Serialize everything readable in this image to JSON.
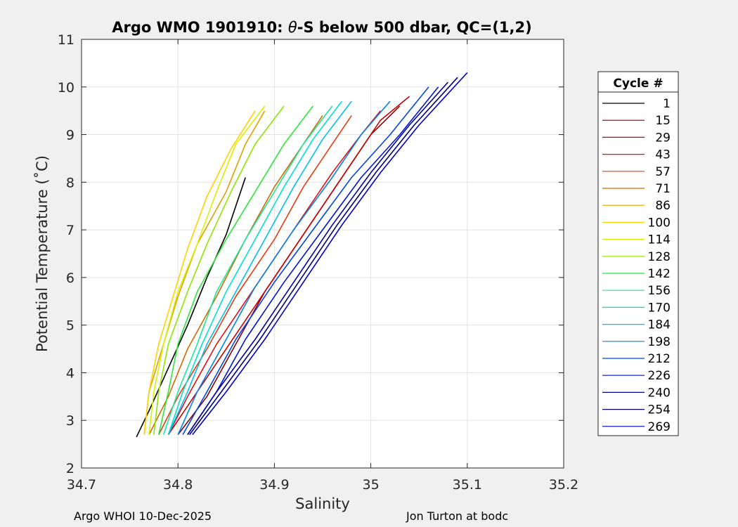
{
  "chart_data": {
    "type": "line",
    "title_prefix": "Argo WMO 1901910: ",
    "title_symbol": "θ",
    "title_suffix": "-S below 500 dbar,  QC=(1,2)",
    "xlabel": "Salinity",
    "ylabel": "Potential Temperature (˚C)",
    "xlim": [
      34.7,
      35.2
    ],
    "ylim": [
      2,
      11
    ],
    "xticks": [
      34.7,
      34.8,
      34.9,
      35,
      35.1,
      35.2
    ],
    "xtick_labels": [
      "34.7",
      "34.8",
      "34.9",
      "35",
      "35.1",
      "35.2"
    ],
    "yticks": [
      2,
      3,
      4,
      5,
      6,
      7,
      8,
      9,
      10,
      11
    ],
    "ytick_labels": [
      "2",
      "3",
      "4",
      "5",
      "6",
      "7",
      "8",
      "9",
      "10",
      "11"
    ],
    "grid": true,
    "legend": {
      "title": "Cycle #",
      "placement": "right",
      "entries": [
        {
          "label": "1",
          "color": "#000000"
        },
        {
          "label": "15",
          "color": "#8c0000"
        },
        {
          "label": "29",
          "color": "#c80000"
        },
        {
          "label": "43",
          "color": "#e01010"
        },
        {
          "label": "57",
          "color": "#e63a10"
        },
        {
          "label": "71",
          "color": "#d06a00"
        },
        {
          "label": "86",
          "color": "#e0a000"
        },
        {
          "label": "100",
          "color": "#ffd200"
        },
        {
          "label": "114",
          "color": "#d8f000"
        },
        {
          "label": "128",
          "color": "#8ce600"
        },
        {
          "label": "142",
          "color": "#2ee63a"
        },
        {
          "label": "156",
          "color": "#1ae6a0"
        },
        {
          "label": "170",
          "color": "#00e0d2"
        },
        {
          "label": "184",
          "color": "#00bef0"
        },
        {
          "label": "198",
          "color": "#0082f0"
        },
        {
          "label": "212",
          "color": "#0046e6"
        },
        {
          "label": "226",
          "color": "#0014d2"
        },
        {
          "label": "240",
          "color": "#0000a0"
        },
        {
          "label": "254",
          "color": "#00006e"
        },
        {
          "label": "269",
          "color": "#0000c8"
        }
      ]
    },
    "series": [
      {
        "color": "#000000",
        "x": [
          34.757,
          34.77,
          34.79,
          34.81,
          34.83,
          34.85,
          34.86,
          34.87
        ],
        "y": [
          2.65,
          3.2,
          4.1,
          5.0,
          6.0,
          6.9,
          7.5,
          8.1
        ]
      },
      {
        "color": "#8c0000",
        "x": [
          34.8,
          34.83,
          34.86,
          34.89,
          34.93,
          34.97,
          35.0,
          35.03
        ],
        "y": [
          2.7,
          3.5,
          4.6,
          5.7,
          6.9,
          8.1,
          9.0,
          9.6
        ]
      },
      {
        "color": "#c80000",
        "x": [
          34.79,
          34.82,
          34.86,
          34.9,
          34.94,
          34.98,
          35.01,
          35.04
        ],
        "y": [
          2.7,
          3.6,
          4.8,
          6.0,
          7.2,
          8.4,
          9.3,
          9.8
        ]
      },
      {
        "color": "#e01010",
        "x": [
          34.79,
          34.81,
          34.84,
          34.88,
          34.92,
          34.96,
          34.99,
          35.01
        ],
        "y": [
          2.7,
          3.5,
          4.6,
          5.8,
          7.0,
          8.2,
          9.0,
          9.5
        ]
      },
      {
        "color": "#e63a10",
        "x": [
          34.78,
          34.8,
          34.83,
          34.86,
          34.9,
          34.93,
          34.96,
          34.98
        ],
        "y": [
          2.7,
          3.5,
          4.5,
          5.6,
          6.8,
          7.9,
          8.8,
          9.4
        ]
      },
      {
        "color": "#d06a00",
        "x": [
          34.77,
          34.79,
          34.81,
          34.84,
          34.87,
          34.9,
          34.93,
          34.95
        ],
        "y": [
          2.7,
          3.5,
          4.5,
          5.6,
          6.8,
          7.9,
          8.8,
          9.4
        ]
      },
      {
        "color": "#e0a000",
        "x": [
          34.765,
          34.77,
          34.785,
          34.8,
          34.82,
          34.85,
          34.87,
          34.89
        ],
        "y": [
          2.7,
          3.6,
          4.6,
          5.6,
          6.7,
          7.8,
          8.8,
          9.5
        ]
      },
      {
        "color": "#ffd200",
        "x": [
          34.765,
          34.77,
          34.78,
          34.795,
          34.81,
          34.83,
          34.855,
          34.88
        ],
        "y": [
          2.7,
          3.6,
          4.6,
          5.6,
          6.6,
          7.7,
          8.7,
          9.5
        ]
      },
      {
        "color": "#d8f000",
        "x": [
          34.77,
          34.775,
          34.785,
          34.8,
          34.82,
          34.84,
          34.86,
          34.89
        ],
        "y": [
          2.7,
          3.6,
          4.6,
          5.7,
          6.7,
          7.8,
          8.8,
          9.6
        ]
      },
      {
        "color": "#8ce600",
        "x": [
          34.775,
          34.78,
          34.79,
          34.81,
          34.83,
          34.855,
          34.88,
          34.91
        ],
        "y": [
          2.7,
          3.6,
          4.6,
          5.7,
          6.7,
          7.8,
          8.8,
          9.6
        ]
      },
      {
        "color": "#2ee63a",
        "x": [
          34.78,
          34.79,
          34.8,
          34.82,
          34.85,
          34.88,
          34.91,
          34.94
        ],
        "y": [
          2.7,
          3.6,
          4.6,
          5.7,
          6.8,
          7.8,
          8.8,
          9.6
        ]
      },
      {
        "color": "#1ae6a0",
        "x": [
          34.785,
          34.8,
          34.82,
          34.84,
          34.87,
          34.9,
          34.93,
          34.96
        ],
        "y": [
          2.7,
          3.6,
          4.6,
          5.7,
          6.8,
          7.8,
          8.8,
          9.6
        ]
      },
      {
        "color": "#00e0d2",
        "x": [
          34.79,
          34.805,
          34.825,
          34.85,
          34.88,
          34.91,
          34.94,
          34.97
        ],
        "y": [
          2.7,
          3.6,
          4.6,
          5.7,
          6.8,
          7.9,
          8.9,
          9.7
        ]
      },
      {
        "color": "#00bef0",
        "x": [
          34.79,
          34.81,
          34.83,
          34.86,
          34.89,
          34.92,
          34.95,
          34.98
        ],
        "y": [
          2.7,
          3.6,
          4.6,
          5.7,
          6.8,
          7.9,
          8.9,
          9.7
        ]
      },
      {
        "color": "#0082f0",
        "x": [
          34.8,
          34.82,
          34.85,
          34.88,
          34.92,
          34.96,
          34.99,
          35.02
        ],
        "y": [
          2.7,
          3.6,
          4.7,
          5.8,
          7.0,
          8.1,
          9.0,
          9.7
        ]
      },
      {
        "color": "#0046e6",
        "x": [
          34.805,
          34.83,
          34.86,
          34.9,
          34.94,
          34.98,
          35.02,
          35.06
        ],
        "y": [
          2.7,
          3.6,
          4.7,
          5.9,
          7.0,
          8.1,
          9.0,
          10.0
        ]
      },
      {
        "color": "#0014d2",
        "x": [
          34.81,
          34.84,
          34.87,
          34.91,
          34.95,
          34.99,
          35.03,
          35.07
        ],
        "y": [
          2.7,
          3.6,
          4.7,
          5.9,
          7.0,
          8.1,
          9.0,
          10.0
        ]
      },
      {
        "color": "#0000a0",
        "x": [
          34.81,
          34.84,
          34.88,
          34.92,
          34.96,
          35.0,
          35.04,
          35.08
        ],
        "y": [
          2.7,
          3.6,
          4.7,
          5.9,
          7.1,
          8.2,
          9.2,
          10.1
        ]
      },
      {
        "color": "#00006e",
        "x": [
          34.812,
          34.845,
          34.885,
          34.925,
          34.965,
          35.005,
          35.045,
          35.09
        ],
        "y": [
          2.7,
          3.6,
          4.7,
          5.9,
          7.1,
          8.2,
          9.2,
          10.2
        ]
      },
      {
        "color": "#0000c8",
        "x": [
          34.815,
          34.85,
          34.89,
          34.93,
          34.97,
          35.01,
          35.05,
          35.1
        ],
        "y": [
          2.7,
          3.6,
          4.7,
          5.9,
          7.1,
          8.2,
          9.2,
          10.3
        ]
      }
    ]
  },
  "footer": {
    "left": "Argo WHOI 10-Dec-2025",
    "right": "Jon Turton at bodc"
  }
}
